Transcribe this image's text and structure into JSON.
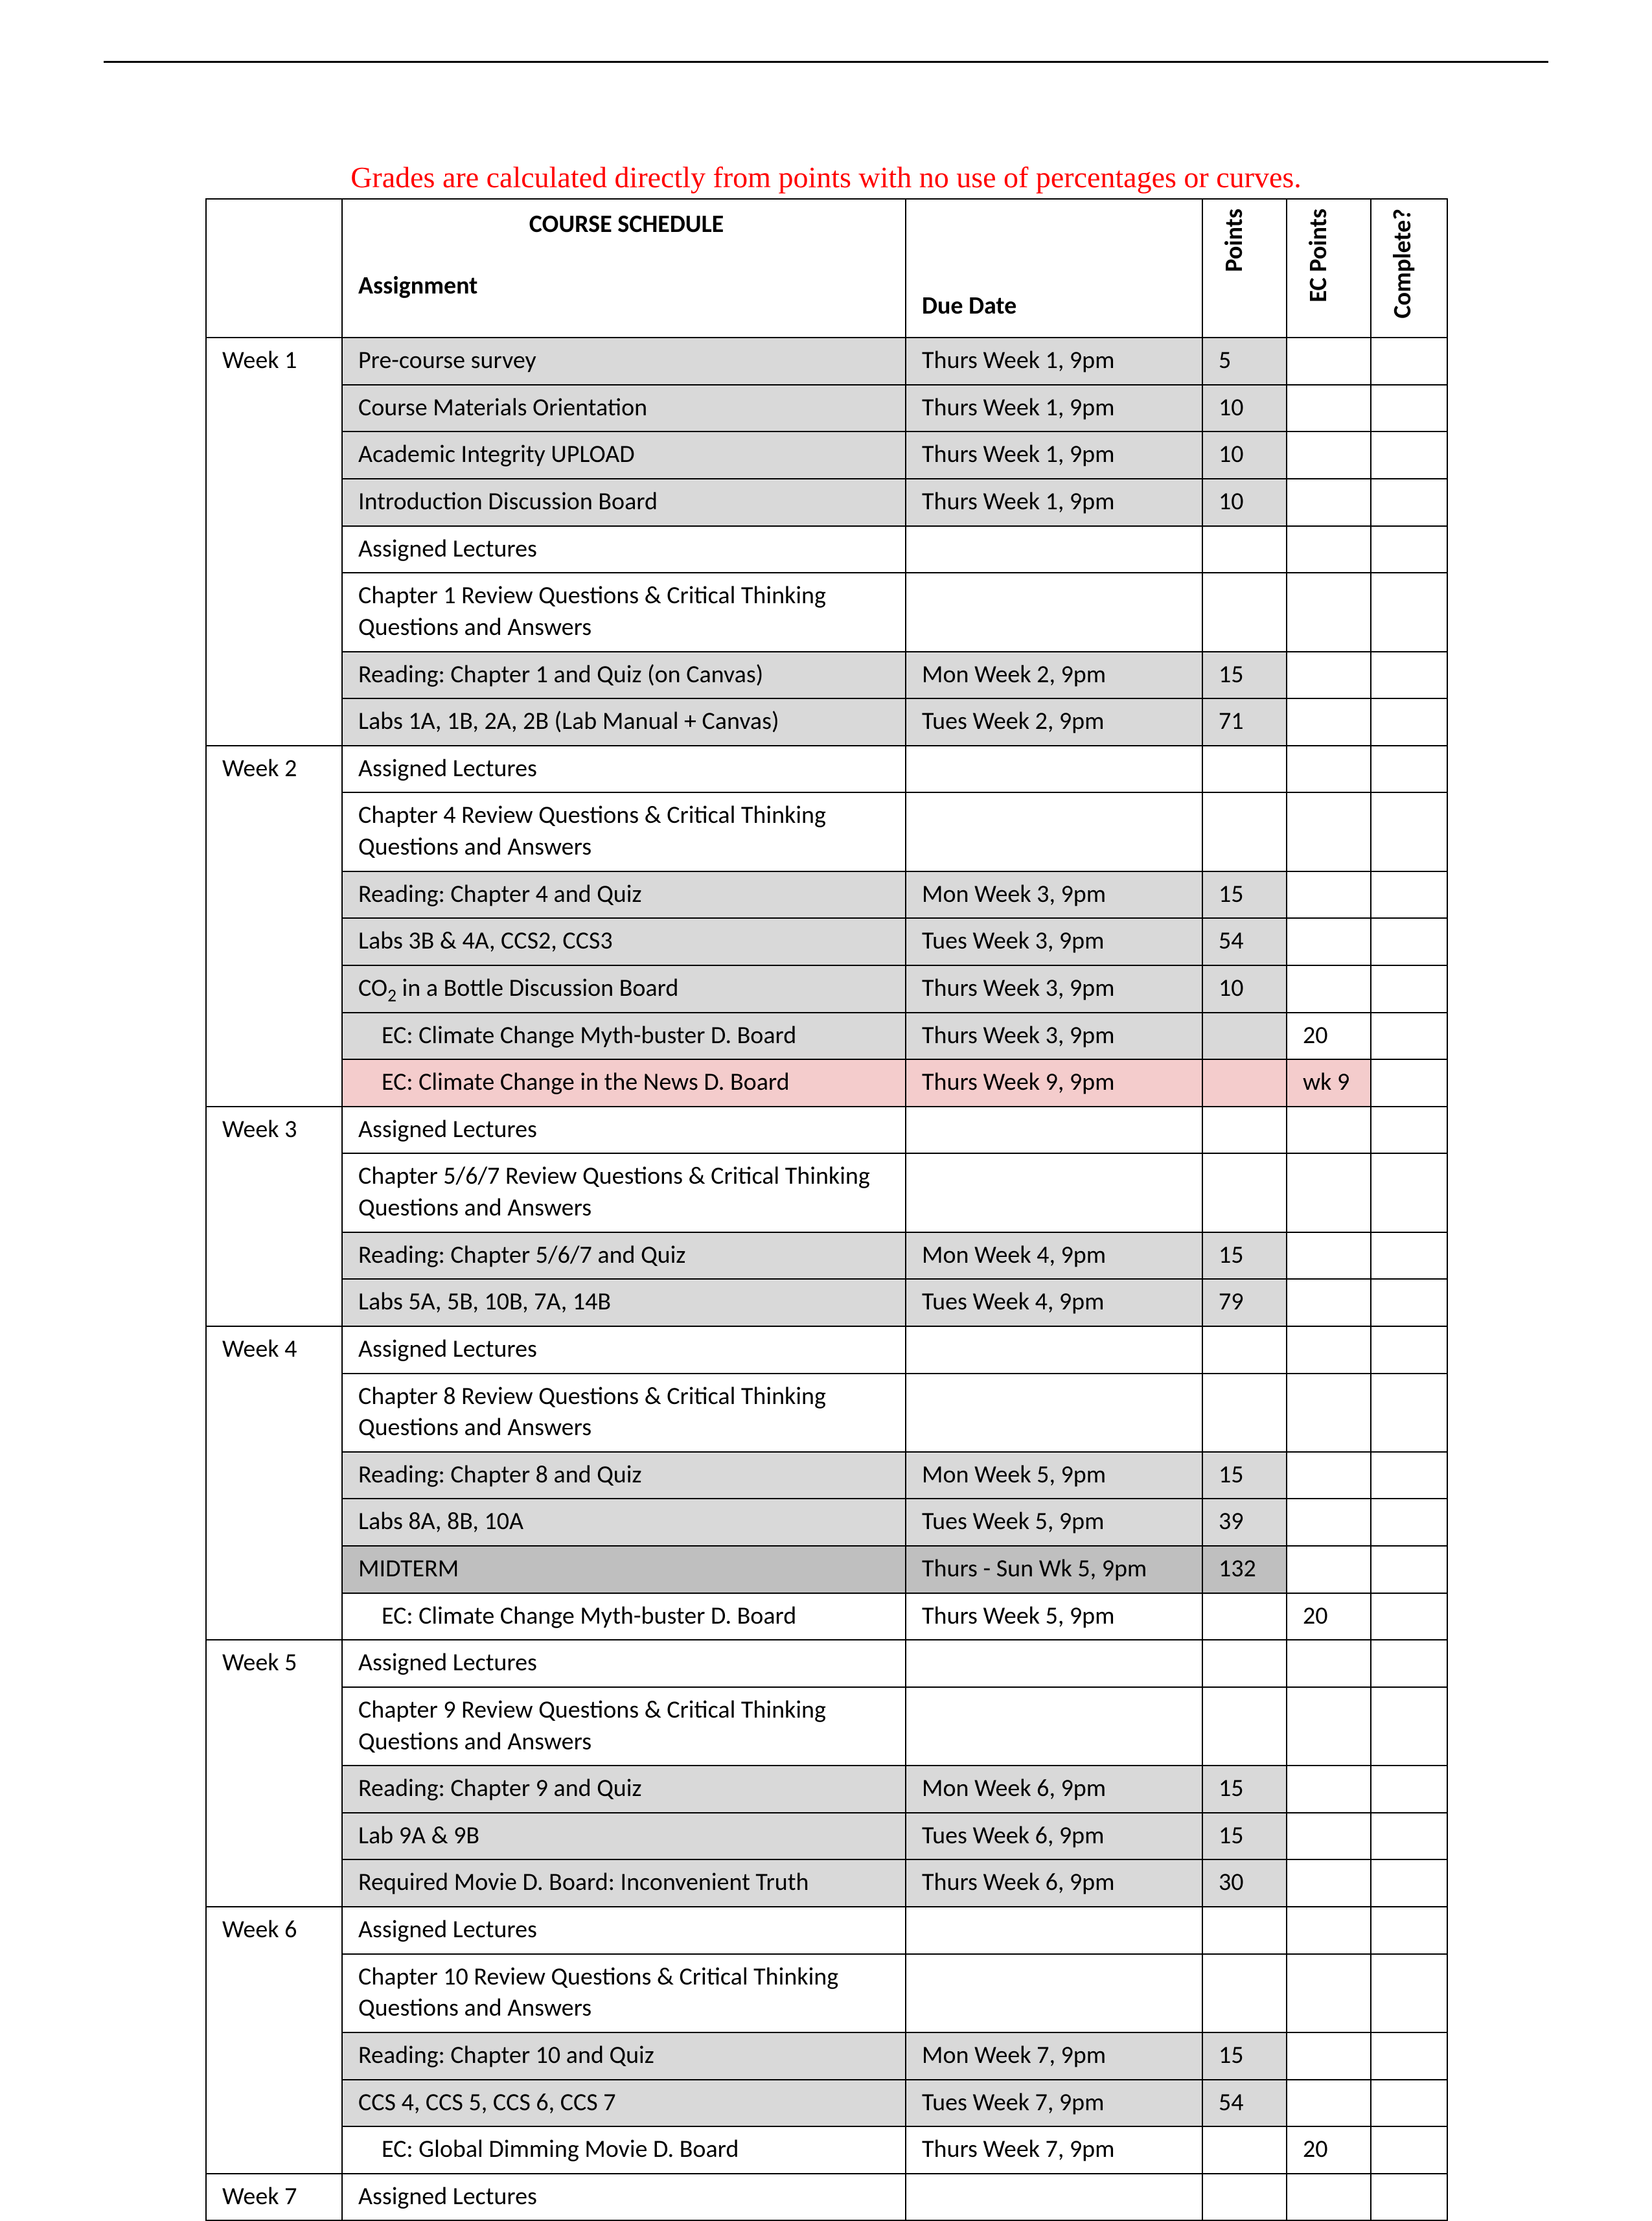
{
  "colors": {
    "page_bg": "#ffffff",
    "rule": "#000000",
    "notice": "#ff0000",
    "border": "#000000",
    "shade_light": "#d9d9d9",
    "shade_dark": "#bfbfbf",
    "shade_pink": "#f4cccc"
  },
  "notice_text": "Grades are calculated directly from points with no use of percentages or curves.",
  "table": {
    "title": "COURSE SCHEDULE",
    "headers": {
      "assignment": "Assignment",
      "due_date": "Due Date",
      "points": "Points",
      "ec_points": "EC Points",
      "complete": "Complete?"
    },
    "weeks": [
      {
        "label": "Week 1",
        "rows": [
          {
            "assignment": "Pre-course survey",
            "due": "Thurs Week 1, 9pm",
            "pts": "5",
            "ec": "",
            "shade": "lt"
          },
          {
            "assignment": "Course Materials Orientation",
            "due": "Thurs Week 1, 9pm",
            "pts": "10",
            "ec": "",
            "shade": "lt"
          },
          {
            "assignment": "Academic Integrity UPLOAD",
            "due": "Thurs Week 1, 9pm",
            "pts": "10",
            "ec": "",
            "shade": "lt"
          },
          {
            "assignment": "Introduction Discussion Board",
            "due": "Thurs Week 1, 9pm",
            "pts": "10",
            "ec": "",
            "shade": "lt"
          },
          {
            "assignment": "Assigned Lectures",
            "due": "",
            "pts": "",
            "ec": "",
            "shade": "none"
          },
          {
            "assignment": "Chapter 1 Review Questions & Critical Thinking Questions and Answers",
            "due": "",
            "pts": "",
            "ec": "",
            "shade": "none"
          },
          {
            "assignment": "Reading: Chapter 1 and Quiz (on Canvas)",
            "due": "Mon Week 2, 9pm",
            "pts": "15",
            "ec": "",
            "shade": "lt"
          },
          {
            "assignment": "Labs 1A, 1B, 2A, 2B (Lab Manual + Canvas)",
            "due": "Tues Week 2, 9pm",
            "pts": "71",
            "ec": "",
            "shade": "lt"
          }
        ]
      },
      {
        "label": "Week 2",
        "rows": [
          {
            "assignment": "Assigned Lectures",
            "due": "",
            "pts": "",
            "ec": "",
            "shade": "none"
          },
          {
            "assignment": "Chapter 4 Review Questions & Critical Thinking Questions and Answers",
            "due": "",
            "pts": "",
            "ec": "",
            "shade": "none"
          },
          {
            "assignment": "Reading: Chapter 4 and Quiz",
            "due": "Mon Week 3, 9pm",
            "pts": "15",
            "ec": "",
            "shade": "lt"
          },
          {
            "assignment": "Labs 3B & 4A, CCS2, CCS3",
            "due": "Tues Week 3, 9pm",
            "pts": "54",
            "ec": "",
            "shade": "lt"
          },
          {
            "assignment_html": "CO<sub>2</sub> in a Bottle Discussion Board",
            "due": "Thurs Week 3, 9pm",
            "pts": "10",
            "ec": "",
            "shade": "lt"
          },
          {
            "assignment": "EC: Climate Change Myth-buster D. Board",
            "due": "Thurs Week 3, 9pm",
            "pts": "",
            "ec": "20",
            "shade": "lt",
            "indent": true
          },
          {
            "assignment": "EC: Climate Change in the News D. Board",
            "due": "Thurs Week 9, 9pm",
            "pts": "",
            "ec": "wk 9",
            "shade": "pink",
            "indent": true
          }
        ]
      },
      {
        "label": "Week 3",
        "rows": [
          {
            "assignment": "Assigned Lectures",
            "due": "",
            "pts": "",
            "ec": "",
            "shade": "none"
          },
          {
            "assignment": "Chapter 5/6/7 Review Questions & Critical Thinking Questions and Answers",
            "due": "",
            "pts": "",
            "ec": "",
            "shade": "none"
          },
          {
            "assignment": "Reading: Chapter 5/6/7 and Quiz",
            "due": "Mon Week 4, 9pm",
            "pts": "15",
            "ec": "",
            "shade": "lt"
          },
          {
            "assignment": "Labs 5A, 5B, 10B, 7A, 14B",
            "due": "Tues Week 4, 9pm",
            "pts": "79",
            "ec": "",
            "shade": "lt"
          }
        ]
      },
      {
        "label": "Week 4",
        "rows": [
          {
            "assignment": "Assigned Lectures",
            "due": "",
            "pts": "",
            "ec": "",
            "shade": "none"
          },
          {
            "assignment": "Chapter 8 Review Questions & Critical Thinking Questions and Answers",
            "due": "",
            "pts": "",
            "ec": "",
            "shade": "none"
          },
          {
            "assignment": "Reading: Chapter 8 and Quiz",
            "due": "Mon Week 5, 9pm",
            "pts": "15",
            "ec": "",
            "shade": "lt"
          },
          {
            "assignment": "Labs 8A, 8B, 10A",
            "due": "Tues Week 5, 9pm",
            "pts": "39",
            "ec": "",
            "shade": "lt"
          },
          {
            "assignment": "MIDTERM",
            "due": "Thurs - Sun Wk 5, 9pm",
            "pts": "132",
            "ec": "",
            "shade": "dk",
            "bold": true
          },
          {
            "assignment": "EC: Climate Change Myth-buster D. Board",
            "due": "Thurs Week 5, 9pm",
            "pts": "",
            "ec": "20",
            "shade": "none",
            "indent": true
          }
        ]
      },
      {
        "label": "Week 5",
        "rows": [
          {
            "assignment": "Assigned Lectures",
            "due": "",
            "pts": "",
            "ec": "",
            "shade": "none"
          },
          {
            "assignment": "Chapter 9 Review Questions & Critical Thinking Questions and Answers",
            "due": "",
            "pts": "",
            "ec": "",
            "shade": "none"
          },
          {
            "assignment": "Reading: Chapter 9 and Quiz",
            "due": "Mon Week 6, 9pm",
            "pts": "15",
            "ec": "",
            "shade": "lt"
          },
          {
            "assignment": "Lab 9A & 9B",
            "due": "Tues Week 6, 9pm",
            "pts": "15",
            "ec": "",
            "shade": "lt"
          },
          {
            "assignment": "Required Movie D. Board: Inconvenient Truth",
            "due": "Thurs Week 6, 9pm",
            "pts": "30",
            "ec": "",
            "shade": "lt"
          }
        ]
      },
      {
        "label": "Week 6",
        "rows": [
          {
            "assignment": "Assigned Lectures",
            "due": "",
            "pts": "",
            "ec": "",
            "shade": "none"
          },
          {
            "assignment": "Chapter 10 Review Questions & Critical Thinking Questions and Answers",
            "due": "",
            "pts": "",
            "ec": "",
            "shade": "none"
          },
          {
            "assignment": "Reading: Chapter 10 and Quiz",
            "due": "Mon Week 7, 9pm",
            "pts": "15",
            "ec": "",
            "shade": "lt"
          },
          {
            "assignment": "CCS 4, CCS 5, CCS 6, CCS 7",
            "due": "Tues Week 7, 9pm",
            "pts": "54",
            "ec": "",
            "shade": "lt"
          },
          {
            "assignment": "EC: Global Dimming Movie D. Board",
            "due": "Thurs Week 7, 9pm",
            "pts": "",
            "ec": "20",
            "shade": "none",
            "indent": true
          }
        ]
      },
      {
        "label": "Week 7",
        "rows": [
          {
            "assignment": "Assigned Lectures",
            "due": "",
            "pts": "",
            "ec": "",
            "shade": "none"
          }
        ]
      }
    ]
  }
}
